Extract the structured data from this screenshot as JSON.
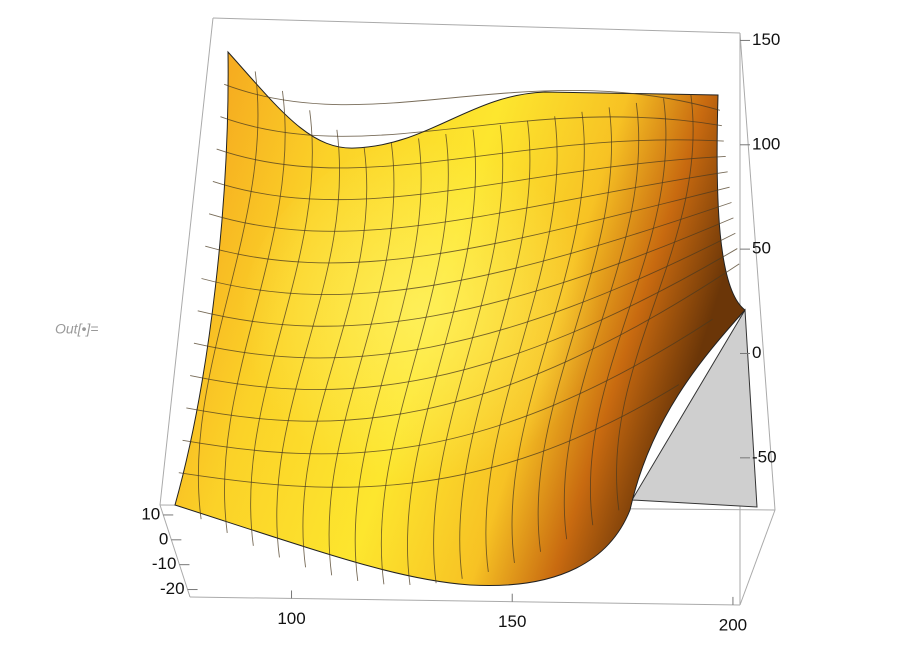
{
  "cell_label": "Out[•]=",
  "chart_data": {
    "type": "surface3d",
    "xlim": [
      77,
      201.6
    ],
    "xticks": [
      100,
      150,
      200
    ],
    "ylim": [
      -23,
      14
    ],
    "yticks": [
      10,
      0,
      -10,
      -20
    ],
    "zlim": [
      -75,
      155
    ],
    "zticks": [
      150,
      100,
      50,
      0,
      -50
    ]
  }
}
